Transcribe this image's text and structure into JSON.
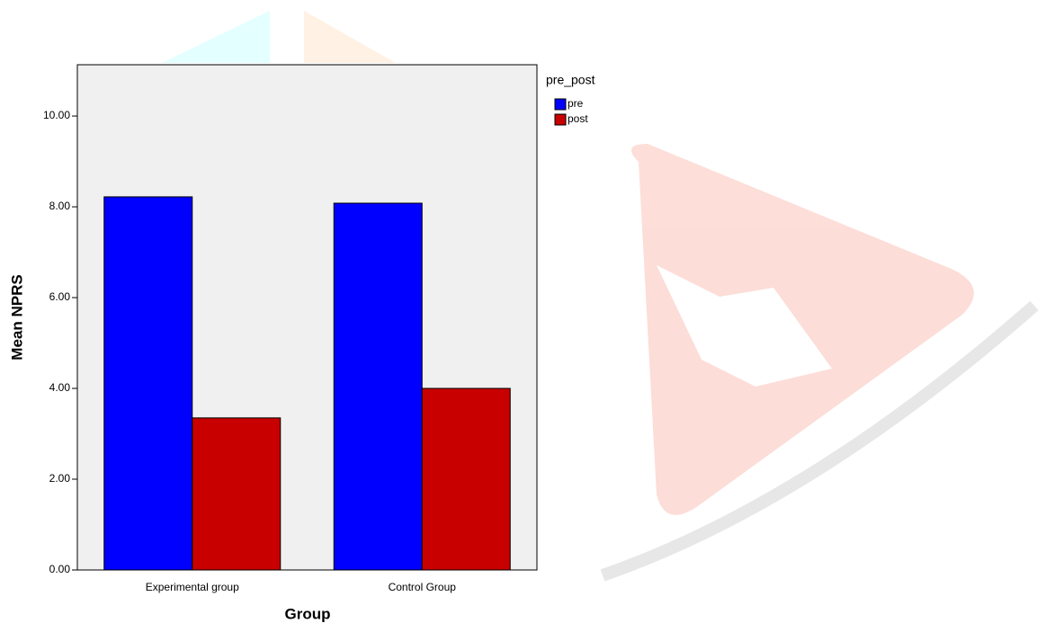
{
  "chart_data": {
    "type": "bar",
    "categories": [
      "Experimental group",
      "Control Group"
    ],
    "series": [
      {
        "name": "pre",
        "color": "#0000ff",
        "values": [
          8.22,
          8.08
        ]
      },
      {
        "name": "post",
        "color": "#c80000",
        "values": [
          3.35,
          4.0
        ]
      }
    ],
    "xlabel": "Group",
    "ylabel": "Mean NPRS",
    "legend_title": "pre_post",
    "ylim": [
      0,
      11.13
    ],
    "yticks": [
      {
        "value": 0,
        "label": "0.00"
      },
      {
        "value": 2,
        "label": "2.00"
      },
      {
        "value": 4,
        "label": "4.00"
      },
      {
        "value": 6,
        "label": "6.00"
      },
      {
        "value": 8,
        "label": "8.00"
      },
      {
        "value": 10,
        "label": "10.00"
      }
    ],
    "legend": "right"
  }
}
